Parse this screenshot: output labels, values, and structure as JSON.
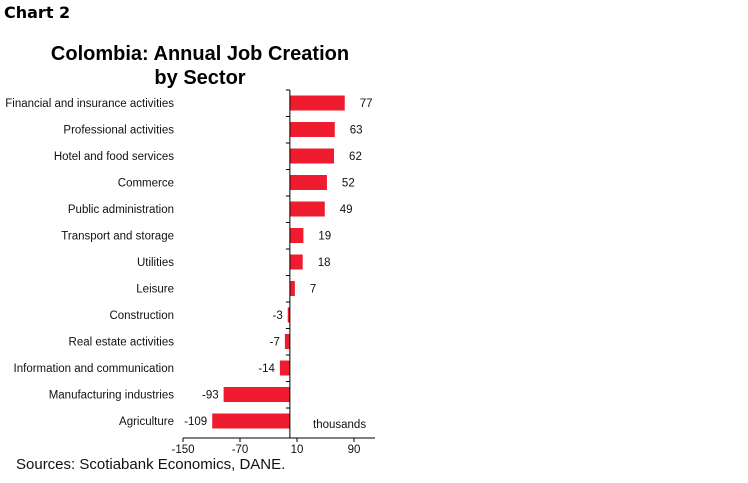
{
  "header": "Chart 2",
  "source": "Sources: Scotiabank Economics, DANE.",
  "chart_data": {
    "type": "bar",
    "orientation": "horizontal",
    "title": "Colombia: Annual Job Creation by Sector",
    "title_lines": [
      "Colombia: Annual Job Creation",
      "by Sector"
    ],
    "unit_label": "thousands",
    "categories": [
      "Financial and insurance activities",
      "Professional activities",
      "Hotel and food services",
      "Commerce",
      "Public administration",
      "Transport and storage",
      "Utilities",
      "Leisure",
      "Construction",
      "Real estate activities",
      "Information and communication",
      "Manufacturing industries",
      "Agriculture"
    ],
    "values": [
      77,
      63,
      62,
      52,
      49,
      19,
      18,
      7,
      -3,
      -7,
      -14,
      -93,
      -109
    ],
    "xlim": [
      -150,
      120
    ],
    "xticks": [
      -150,
      -70,
      10,
      90
    ],
    "xtick_labels": [
      "-150",
      "-70",
      "10",
      "90"
    ],
    "bar_color": "#ee1c2e",
    "grid": false
  }
}
